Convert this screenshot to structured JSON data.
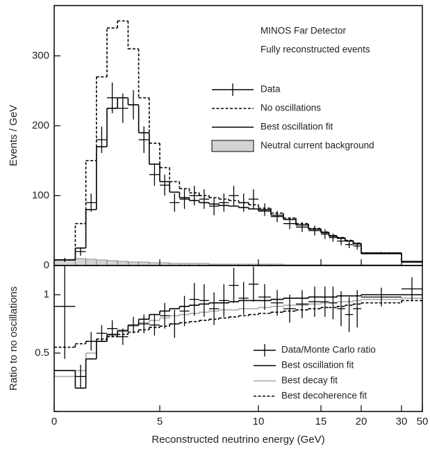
{
  "chart_data": [
    {
      "type": "histogram",
      "ylabel": "Events / GeV",
      "annotations": [
        "MINOS Far Detector",
        "Fully reconstructed events"
      ],
      "bins": [
        0,
        1,
        1.5,
        2,
        2.5,
        3,
        3.5,
        4,
        4.5,
        5,
        5.5,
        6,
        6.5,
        7,
        7.5,
        8,
        8.5,
        9,
        9.5,
        10,
        11,
        12,
        13,
        14,
        15,
        16,
        17,
        18,
        19,
        20,
        30,
        50
      ],
      "ylim": [
        0,
        372
      ],
      "yticks": [
        0,
        100,
        200,
        300
      ],
      "series": [
        {
          "name": "Neutral current background",
          "style": "filled",
          "color": "#d3d3d3",
          "values": [
            8,
            10,
            9,
            8,
            7,
            6,
            5,
            5,
            4,
            4,
            3,
            3,
            3,
            3,
            2,
            2,
            2,
            2,
            2,
            2,
            2,
            1,
            1,
            1,
            1,
            1,
            1,
            1,
            1,
            1,
            0.5
          ]
        },
        {
          "name": "No oscillations",
          "style": "dashed",
          "color": "#000000",
          "values": [
            8,
            60,
            150,
            270,
            340,
            350,
            310,
            240,
            175,
            140,
            120,
            110,
            104,
            100,
            97,
            95,
            93,
            90,
            87,
            82,
            75,
            68,
            60,
            53,
            48,
            43,
            40,
            36,
            32,
            18,
            5
          ]
        },
        {
          "name": "Best oscillation fit",
          "style": "solid",
          "color": "#000000",
          "values": [
            8,
            25,
            80,
            170,
            225,
            240,
            230,
            190,
            145,
            120,
            105,
            97,
            93,
            90,
            88,
            86,
            85,
            83,
            81,
            78,
            72,
            66,
            58,
            52,
            47,
            42,
            39,
            35,
            31,
            17,
            5
          ]
        },
        {
          "name": "Data",
          "style": "points",
          "color": "#000000",
          "values": [
            8,
            20,
            90,
            180,
            240,
            225,
            230,
            180,
            130,
            115,
            90,
            95,
            100,
            95,
            85,
            90,
            100,
            90,
            95,
            80,
            70,
            60,
            55,
            50,
            45,
            40,
            35,
            30,
            28,
            18,
            6
          ],
          "errors": [
            3,
            6,
            13,
            19,
            22,
            21,
            21,
            19,
            16,
            15,
            13,
            14,
            14,
            14,
            13,
            13,
            14,
            13,
            14,
            9,
            8,
            8,
            7,
            7,
            7,
            6,
            6,
            5,
            5,
            1.3,
            0.5
          ]
        }
      ]
    },
    {
      "type": "histogram",
      "ylabel": "Ratio to no oscillations",
      "xlabel": "Reconstructed neutrino energy (GeV)",
      "bins": [
        0,
        1,
        1.5,
        2,
        2.5,
        3,
        3.5,
        4,
        4.5,
        5,
        5.5,
        6,
        6.5,
        7,
        7.5,
        8,
        8.5,
        9,
        9.5,
        10,
        11,
        12,
        13,
        14,
        15,
        16,
        17,
        18,
        19,
        20,
        30,
        50
      ],
      "xlim": [
        0,
        50
      ],
      "xticks": [
        0,
        5,
        10,
        15,
        20,
        30,
        50
      ],
      "ylim": [
        0,
        1.25
      ],
      "yticks": [
        0,
        0.5,
        1
      ],
      "series": [
        {
          "name": "Best decay fit",
          "style": "solid",
          "color": "#a8a8a8",
          "values": [
            0.3,
            0.35,
            0.5,
            0.6,
            0.65,
            0.7,
            0.73,
            0.76,
            0.78,
            0.8,
            0.82,
            0.83,
            0.84,
            0.85,
            0.86,
            0.87,
            0.87,
            0.88,
            0.88,
            0.89,
            0.9,
            0.91,
            0.91,
            0.92,
            0.93,
            0.93,
            0.94,
            0.94,
            0.95,
            0.96,
            0.97
          ]
        },
        {
          "name": "Best decoherence fit",
          "style": "dashed",
          "color": "#000000",
          "values": [
            0.55,
            0.58,
            0.6,
            0.62,
            0.64,
            0.66,
            0.68,
            0.7,
            0.72,
            0.73,
            0.75,
            0.76,
            0.77,
            0.78,
            0.79,
            0.8,
            0.81,
            0.82,
            0.83,
            0.84,
            0.85,
            0.86,
            0.87,
            0.88,
            0.89,
            0.89,
            0.9,
            0.91,
            0.92,
            0.93,
            0.95
          ]
        },
        {
          "name": "Best oscillation fit",
          "style": "solid",
          "color": "#000000",
          "values": [
            0.35,
            0.2,
            0.45,
            0.6,
            0.66,
            0.69,
            0.74,
            0.79,
            0.83,
            0.86,
            0.88,
            0.9,
            0.91,
            0.92,
            0.93,
            0.93,
            0.94,
            0.95,
            0.95,
            0.95,
            0.96,
            0.97,
            0.97,
            0.98,
            0.98,
            0.98,
            0.99,
            0.99,
            0.99,
            1.0,
            1.0
          ]
        },
        {
          "name": "Data/Monte Carlo ratio",
          "style": "points",
          "color": "#000000",
          "values": [
            0.9,
            0.3,
            0.6,
            0.67,
            0.71,
            0.64,
            0.74,
            0.75,
            0.74,
            0.82,
            0.75,
            0.86,
            0.96,
            0.95,
            0.88,
            0.95,
            1.08,
            0.97,
            1.09,
            0.98,
            0.93,
            0.88,
            0.92,
            0.94,
            0.94,
            0.93,
            0.88,
            0.83,
            0.88,
            0.98,
            1.05
          ],
          "errors": [
            0.45,
            0.1,
            0.08,
            0.07,
            0.07,
            0.07,
            0.07,
            0.08,
            0.09,
            0.11,
            0.12,
            0.13,
            0.14,
            0.14,
            0.14,
            0.14,
            0.15,
            0.14,
            0.15,
            0.11,
            0.11,
            0.12,
            0.12,
            0.13,
            0.13,
            0.14,
            0.15,
            0.15,
            0.16,
            0.08,
            0.1
          ]
        }
      ]
    }
  ]
}
